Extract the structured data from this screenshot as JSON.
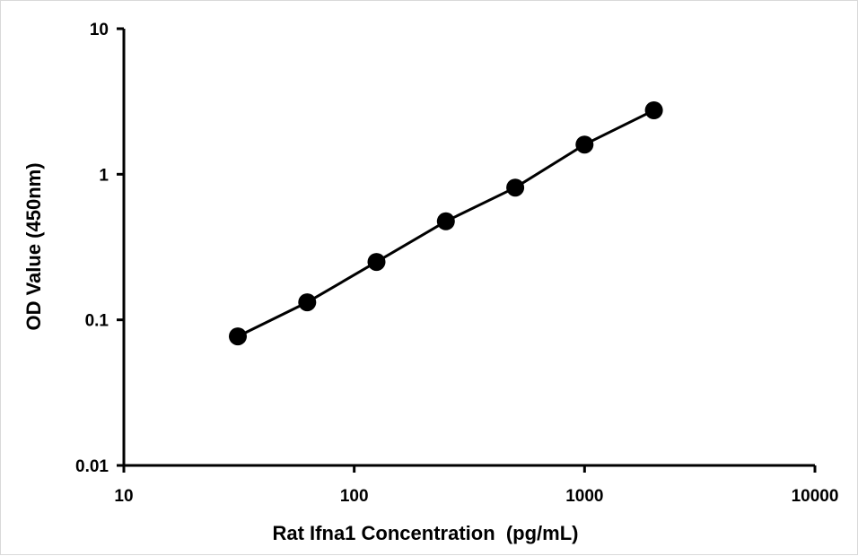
{
  "chart_data": {
    "type": "scatter",
    "title": "",
    "xlabel": "Rat Ifna1 Concentration  (pg/mL)",
    "ylabel": "OD Value (450nm)",
    "xscale": "log",
    "yscale": "log",
    "xlim": [
      10,
      10000
    ],
    "ylim": [
      0.01,
      10
    ],
    "xticks": [
      10,
      100,
      1000,
      10000
    ],
    "yticks": [
      0.01,
      0.1,
      1,
      10
    ],
    "xtick_labels": [
      "10",
      "100",
      "1000",
      "10000"
    ],
    "ytick_labels": [
      "0.01",
      "0.1",
      "1",
      "10"
    ],
    "grid": false,
    "legend": "none",
    "series": [
      {
        "color": "#000000",
        "marker": "circle",
        "line": true,
        "x": [
          31.25,
          62.5,
          125,
          250,
          500,
          1000,
          2000
        ],
        "y": [
          0.077,
          0.132,
          0.25,
          0.475,
          0.81,
          1.6,
          2.75
        ]
      }
    ]
  }
}
